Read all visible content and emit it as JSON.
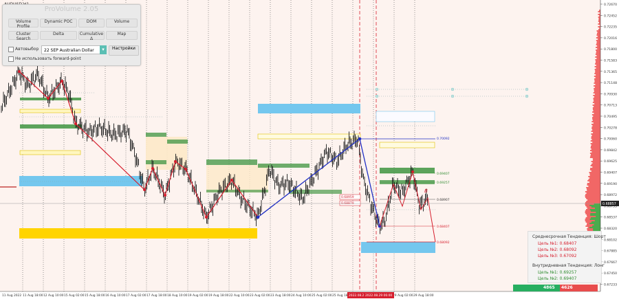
{
  "symbol_label": "AUDUSD,H1",
  "panel": {
    "title": "ProVolume 2.05",
    "buttons": [
      {
        "label": "Volume Profile",
        "active": true
      },
      {
        "label": "Dynamic POC",
        "active": false
      },
      {
        "label": "DOM",
        "active": true
      },
      {
        "label": "Volume",
        "active": false
      },
      {
        "label": "Cluster Search",
        "active": false
      },
      {
        "label": "Delta",
        "active": false
      },
      {
        "label": "Cumulative Δ",
        "active": false
      },
      {
        "label": "Map",
        "active": false
      }
    ],
    "autoselect_label": "Автовыбор",
    "instrument_value": "22 SEP Australian Dollar",
    "settings_label": "Настройки",
    "forward_point_label": "Не использовать forward-point"
  },
  "price_axis": {
    "ticks": [
      "0.72670",
      "0.72452",
      "0.72235",
      "0.72016",
      "0.71800",
      "0.71583",
      "0.71365",
      "0.71148",
      "0.70930",
      "0.70713",
      "0.70495",
      "0.70278",
      "0.70060",
      "0.69842",
      "0.69625",
      "0.69407",
      "0.69190",
      "0.68972",
      "0.68755",
      "0.68537",
      "0.68320",
      "0.68102",
      "0.67885",
      "0.67667",
      "0.67450",
      "0.67233"
    ],
    "current_price": "0.68857"
  },
  "time_axis": {
    "labels": [
      "11 Aug 2022",
      "11 Aug 18:00",
      "12 Aug 10:00",
      "15 Aug 02:00",
      "15 Aug 18:00",
      "16 Aug 10:00",
      "17 Aug 02:00",
      "17 Aug 18:00",
      "18 Aug 10:00",
      "19 Aug 02:00",
      "19 Aug 18:00",
      "22 Aug 10:00",
      "23 Aug 02:00",
      "23 Aug 18:00",
      "24 Aug 10:00",
      "25 Aug 02:00",
      "25 Aug 18:00",
      "26 Aug 10:00",
      "29 Aug 02:00",
      "29 Aug 18:00"
    ],
    "highlight_labels": [
      "2022.08.26",
      "2022.08.29 06:00"
    ]
  },
  "level_labels": {
    "top_line": "0.70092",
    "left_red_1": "0.68959",
    "left_red_2": "0.68879",
    "green_1": "0.69407",
    "green_2": "0.69257",
    "mid": "0.68907",
    "red_low": "0.68407",
    "red_bottom": "0.68092"
  },
  "pattern_label": "B",
  "info": {
    "short_title": "Среднесрочная Тенденция: Шорт",
    "short_targets": [
      "Цель №1: 0.68407",
      "Цель №2: 0.68092",
      "Цель №3: 0.67092"
    ],
    "long_title": "Внутридневная Тенденция: Лонг",
    "long_targets": [
      "Цель №1: 0.69257",
      "Цель №2: 0.69407"
    ]
  },
  "volume_bar": {
    "buy": "4865",
    "sell": "4626"
  },
  "colors": {
    "background": "#fdf3ef",
    "bear_line": "#d61e2d",
    "bull_line": "#1f2fc4",
    "sky_zone": "#74c7ee",
    "gold_zone": "#ffd400",
    "green_zone": "#4a9a4a",
    "profile": "#ee4e4e"
  }
}
